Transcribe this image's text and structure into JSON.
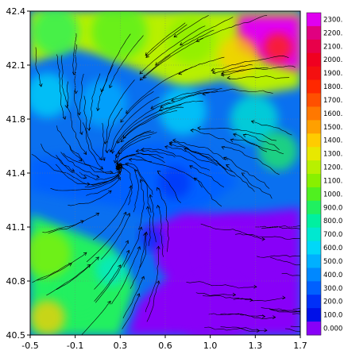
{
  "chart_data": {
    "type": "heatmap",
    "description_kind": "terrain elevation colour-filled map with overlaid wind streamlines",
    "xlim": [
      -0.5,
      1.7
    ],
    "ylim": [
      40.5,
      42.4
    ],
    "x_ticks": [
      "-0.5",
      "-0.1",
      "0.3",
      "0.6",
      "1.0",
      "1.3",
      "1.7"
    ],
    "y_ticks": [
      "42.4",
      "42.1",
      "41.8",
      "41.4",
      "41.1",
      "40.8",
      "40.5"
    ],
    "grid": true,
    "legend_placement": "right",
    "colorbar": {
      "labels": [
        "2300.",
        "2200.",
        "2100.",
        "2000.",
        "1900.",
        "1800.",
        "1700.",
        "1600.",
        "1500.",
        "1400.",
        "1300.",
        "1200.",
        "1100.",
        "1000.",
        "900.0",
        "800.0",
        "700.0",
        "600.0",
        "500.0",
        "400.0",
        "300.0",
        "200.0",
        "100.0",
        "0.000"
      ],
      "colors": [
        "#e000f0",
        "#e00080",
        "#e8004a",
        "#f00020",
        "#f41010",
        "#ff2800",
        "#ff5000",
        "#ff7800",
        "#ffa000",
        "#ffcc00",
        "#e8e800",
        "#b8f000",
        "#88f000",
        "#50f020",
        "#20f060",
        "#00f0a0",
        "#00e8d0",
        "#00d8f8",
        "#00b0ff",
        "#0088ff",
        "#0060ff",
        "#0030f8",
        "#0010e8",
        "#8800f8"
      ]
    },
    "elevation_regions": [
      {
        "name": "low-basin-southeast",
        "level": "0.000"
      },
      {
        "name": "northern-mountains",
        "level": "1200."
      },
      {
        "name": "northeast-peaks",
        "level": "2300."
      },
      {
        "name": "western-ridges",
        "level": "900.0"
      },
      {
        "name": "central-valley",
        "level": "300.0"
      }
    ]
  }
}
